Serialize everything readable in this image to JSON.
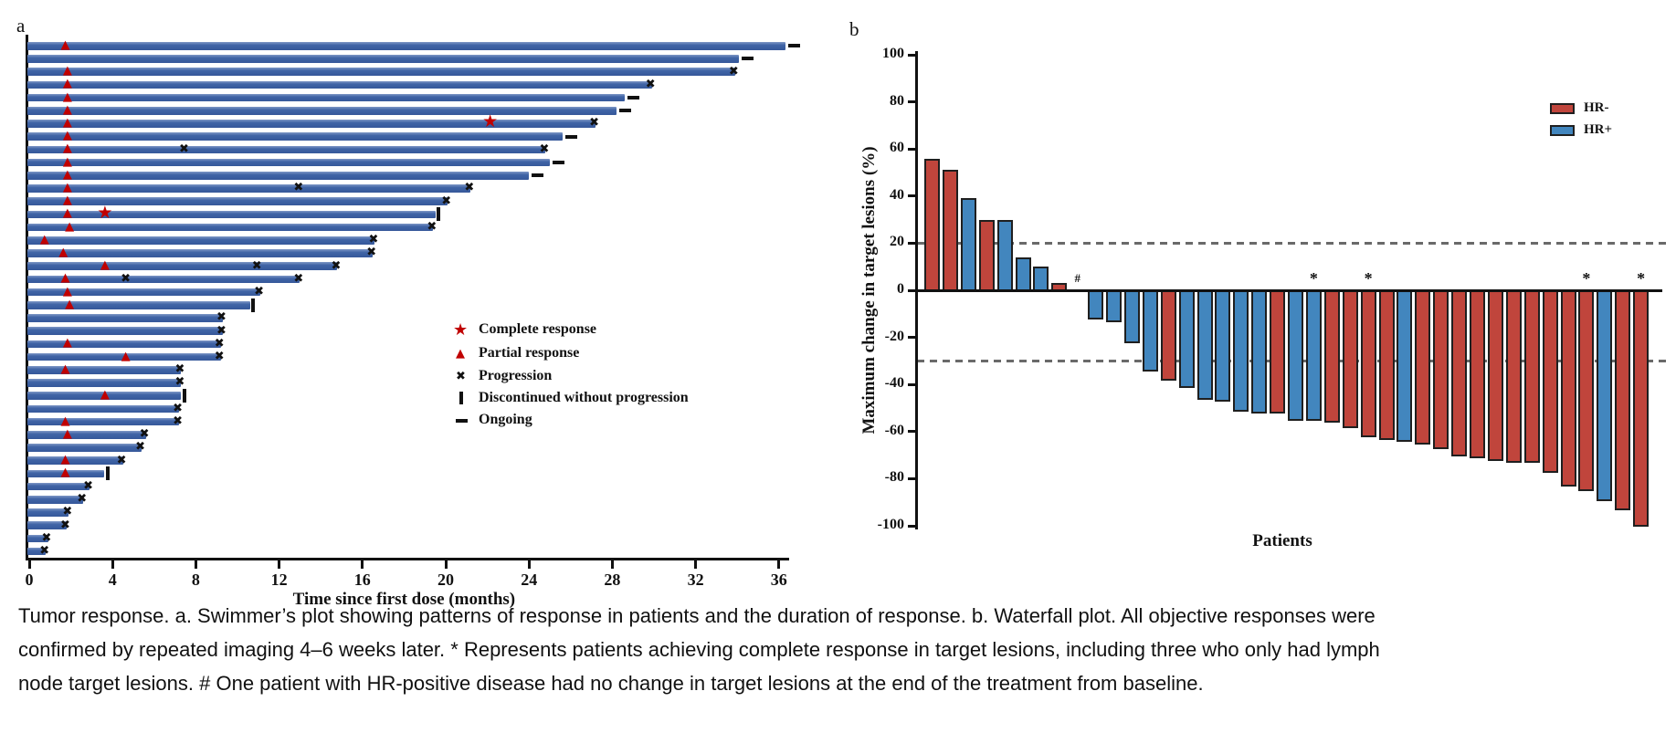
{
  "caption": {
    "lines": [
      "Tumor response. a. Swimmer’s plot showing patterns of response in patients and the duration of response. b. Waterfall plot. All objective responses were",
      "confirmed by repeated imaging 4–6 weeks later. * Represents patients achieving complete response in target lesions, including three who only had lymph",
      "node target lesions. # One patient with HR-positive disease had no change in target lesions at the end of the treatment from baseline."
    ]
  },
  "colors": {
    "swimmer_bar_blue": "#3c63a8",
    "response_marker_red": "#c00000",
    "progression_black": "#111111",
    "hr_negative_red": "#c0453c",
    "hr_positive_blue": "#4286be",
    "bar_outline": "#1f1f1f",
    "dashed_line_gray": "#6a6a6a",
    "axis_black": "#111111"
  },
  "chart_data": [
    {
      "type": "swimmer",
      "panel_label": "a",
      "xlabel": "Time since first dose (months)",
      "xticks": [
        0,
        4,
        8,
        12,
        16,
        20,
        24,
        28,
        32,
        36
      ],
      "xlim": [
        0,
        37
      ],
      "legend": [
        {
          "marker": "star",
          "label": "Complete response"
        },
        {
          "marker": "triangle",
          "label": "Partial response"
        },
        {
          "marker": "x",
          "label": "Progression"
        },
        {
          "marker": "vbar",
          "label": "Discontinued without progression"
        },
        {
          "marker": "dash",
          "label": "Ongoing"
        }
      ],
      "patients": [
        {
          "duration": 36.3,
          "partial_response_at": 1.8,
          "end": "ongoing"
        },
        {
          "duration": 34.1,
          "end": "ongoing"
        },
        {
          "duration": 33.9,
          "partial_response_at": 1.9,
          "end": "progression"
        },
        {
          "duration": 29.9,
          "partial_response_at": 1.9,
          "end": "progression"
        },
        {
          "duration": 28.6,
          "partial_response_at": 1.9,
          "end": "ongoing"
        },
        {
          "duration": 28.2,
          "partial_response_at": 1.9,
          "end": "ongoing"
        },
        {
          "duration": 27.2,
          "partial_response_at": 1.9,
          "complete_response_at": 22.2,
          "end": "progression"
        },
        {
          "duration": 25.6,
          "partial_response_at": 1.9,
          "end": "ongoing"
        },
        {
          "duration": 24.8,
          "partial_response_at": 1.9,
          "progression_at": [
            7.5
          ],
          "end": "progression"
        },
        {
          "duration": 25.0,
          "partial_response_at": 1.9,
          "end": "ongoing"
        },
        {
          "duration": 24.0,
          "partial_response_at": 1.9,
          "end": "ongoing"
        },
        {
          "duration": 21.2,
          "partial_response_at": 1.9,
          "progression_at": [
            13.0
          ],
          "end": "progression"
        },
        {
          "duration": 20.1,
          "partial_response_at": 1.9,
          "end": "progression"
        },
        {
          "duration": 19.5,
          "partial_response_at": 1.9,
          "complete_response_at": 3.7,
          "end": "discontinued"
        },
        {
          "duration": 19.4,
          "partial_response_at": 2.0,
          "end": "progression"
        },
        {
          "duration": 16.6,
          "partial_response_at": 0.8,
          "end": "progression"
        },
        {
          "duration": 16.5,
          "partial_response_at": 1.7,
          "end": "progression"
        },
        {
          "duration": 14.8,
          "partial_response_at": 3.7,
          "progression_at": [
            11.0
          ],
          "end": "progression"
        },
        {
          "duration": 13.0,
          "partial_response_at": 1.8,
          "progression_at": [
            4.7
          ],
          "end": "progression"
        },
        {
          "duration": 11.1,
          "partial_response_at": 1.9,
          "end": "progression"
        },
        {
          "duration": 10.6,
          "partial_response_at": 2.0,
          "end": "discontinued"
        },
        {
          "duration": 9.3,
          "end": "progression"
        },
        {
          "duration": 9.3,
          "end": "progression"
        },
        {
          "duration": 9.2,
          "partial_response_at": 1.9,
          "end": "progression"
        },
        {
          "duration": 9.2,
          "partial_response_at": 4.7,
          "end": "progression"
        },
        {
          "duration": 7.3,
          "partial_response_at": 1.8,
          "end": "progression"
        },
        {
          "duration": 7.3,
          "end": "progression"
        },
        {
          "duration": 7.3,
          "partial_response_at": 3.7,
          "end": "discontinued"
        },
        {
          "duration": 7.2,
          "end": "progression"
        },
        {
          "duration": 7.2,
          "partial_response_at": 1.8,
          "end": "progression"
        },
        {
          "duration": 5.6,
          "partial_response_at": 1.9,
          "end": "progression"
        },
        {
          "duration": 5.4,
          "end": "progression"
        },
        {
          "duration": 4.5,
          "partial_response_at": 1.8,
          "end": "progression"
        },
        {
          "duration": 3.6,
          "partial_response_at": 1.8,
          "end": "discontinued"
        },
        {
          "duration": 2.9,
          "end": "progression"
        },
        {
          "duration": 2.6,
          "end": "progression"
        },
        {
          "duration": 1.9,
          "end": "progression"
        },
        {
          "duration": 1.8,
          "end": "progression"
        },
        {
          "duration": 0.9,
          "end": "progression"
        },
        {
          "duration": 0.8,
          "end": "progression"
        }
      ]
    },
    {
      "type": "waterfall",
      "panel_label": "b",
      "ylabel": "Maximum change in target lesions (%)",
      "xlabel": "Patients",
      "yticks": [
        100,
        80,
        60,
        40,
        20,
        0,
        -20,
        -40,
        -60,
        -80,
        -100
      ],
      "ylim": [
        -100,
        100
      ],
      "reference_lines": [
        20,
        -30
      ],
      "legend": [
        {
          "label": "HR-",
          "group": "HR-"
        },
        {
          "label": "HR+",
          "group": "HR+"
        }
      ],
      "bars": [
        {
          "value": 56,
          "group": "HR-"
        },
        {
          "value": 51,
          "group": "HR-"
        },
        {
          "value": 39,
          "group": "HR+"
        },
        {
          "value": 30,
          "group": "HR-"
        },
        {
          "value": 30,
          "group": "HR+"
        },
        {
          "value": 14,
          "group": "HR+"
        },
        {
          "value": 10,
          "group": "HR+"
        },
        {
          "value": 3,
          "group": "HR-"
        },
        {
          "value": 0,
          "group": "HR+",
          "annotation": "#"
        },
        {
          "value": -12,
          "group": "HR+"
        },
        {
          "value": -13,
          "group": "HR+"
        },
        {
          "value": -22,
          "group": "HR+"
        },
        {
          "value": -34,
          "group": "HR+"
        },
        {
          "value": -38,
          "group": "HR-"
        },
        {
          "value": -41,
          "group": "HR+"
        },
        {
          "value": -46,
          "group": "HR+"
        },
        {
          "value": -47,
          "group": "HR+"
        },
        {
          "value": -51,
          "group": "HR+"
        },
        {
          "value": -52,
          "group": "HR+"
        },
        {
          "value": -52,
          "group": "HR-"
        },
        {
          "value": -55,
          "group": "HR+"
        },
        {
          "value": -55,
          "group": "HR+",
          "annotation": "*"
        },
        {
          "value": -56,
          "group": "HR-"
        },
        {
          "value": -58,
          "group": "HR-"
        },
        {
          "value": -62,
          "group": "HR-",
          "annotation": "*"
        },
        {
          "value": -63,
          "group": "HR-"
        },
        {
          "value": -64,
          "group": "HR+"
        },
        {
          "value": -65,
          "group": "HR-"
        },
        {
          "value": -67,
          "group": "HR-"
        },
        {
          "value": -70,
          "group": "HR-"
        },
        {
          "value": -71,
          "group": "HR-"
        },
        {
          "value": -72,
          "group": "HR-"
        },
        {
          "value": -73,
          "group": "HR-"
        },
        {
          "value": -73,
          "group": "HR-"
        },
        {
          "value": -77,
          "group": "HR-"
        },
        {
          "value": -83,
          "group": "HR-"
        },
        {
          "value": -85,
          "group": "HR-",
          "annotation": "*"
        },
        {
          "value": -89,
          "group": "HR+"
        },
        {
          "value": -93,
          "group": "HR-"
        },
        {
          "value": -100,
          "group": "HR-",
          "annotation": "*"
        }
      ]
    }
  ]
}
